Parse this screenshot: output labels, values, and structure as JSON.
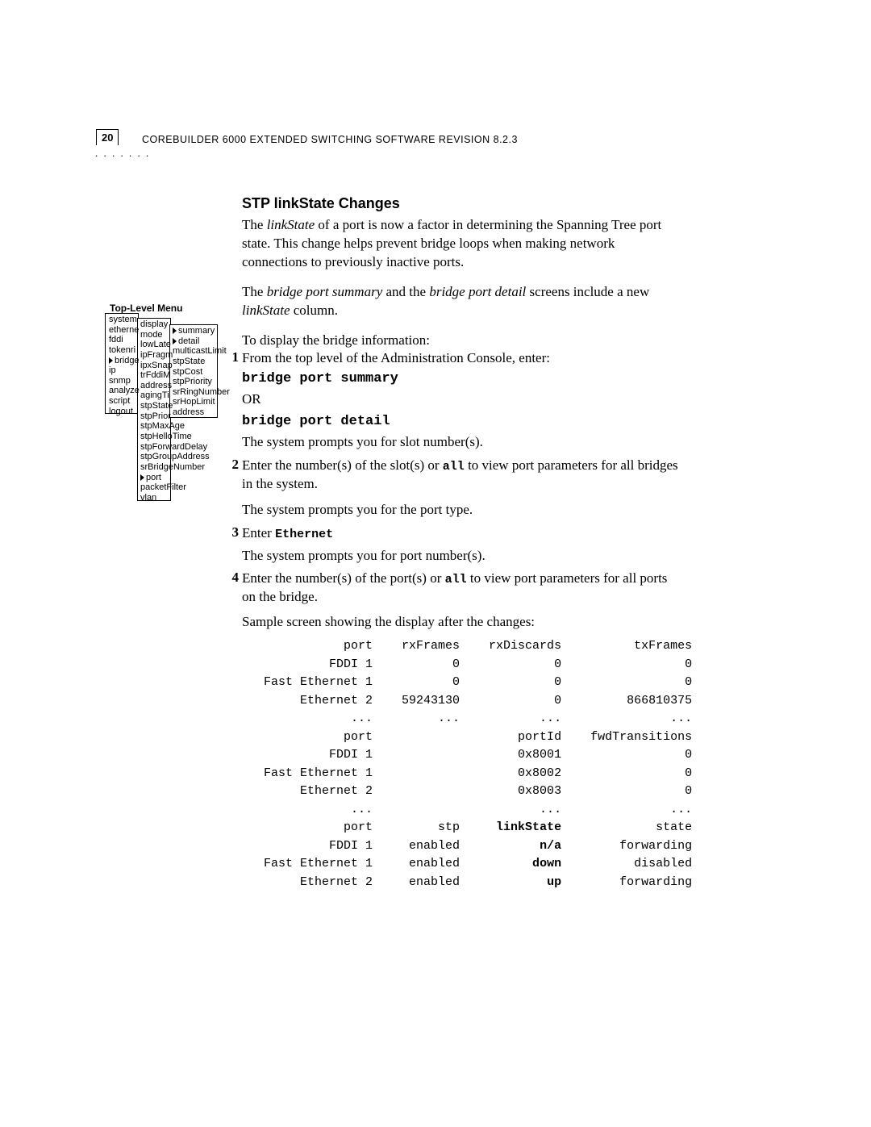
{
  "page_number": "20",
  "header": "COREBUILDER 6000 EXTENDED SWITCHING SOFTWARE REVISION 8.2.3",
  "section_title": "STP linkState Changes",
  "para1a": "The ",
  "para1_ital1": "linkState",
  "para1b": " of a port is now a factor in determining the Spanning Tree port state. This change helps prevent bridge loops when making network connections to previously inactive ports.",
  "para2a": "The ",
  "para2_ital1": "bridge port summary",
  "para2b": " and the ",
  "para2_ital2": "bridge port detail",
  "para2c": " screens include a new ",
  "para2_ital3": "linkState",
  "para2d": " column.",
  "para3": "To display the bridge information:",
  "step1": "From the top level of the Administration Console, enter:",
  "cmd1": "bridge port summary",
  "or": "OR",
  "cmd2": "bridge port detail",
  "prompt_slot": "The system prompts you for slot number(s).",
  "step2a": "Enter the number(s) of the slot(s) or ",
  "step2_all": "all",
  "step2b": " to view port parameters for all bridges in the system.",
  "prompt_type": "The system prompts you for the port type.",
  "step3a": "Enter ",
  "step3_eth": "Ethernet",
  "prompt_port": "The system prompts you for port number(s).",
  "step4a": "Enter the number(s) of the port(s) or ",
  "step4_all": "all",
  "step4b": " to view port parameters for all ports on the bridge.",
  "sample_intro": "Sample screen showing the display after the changes:",
  "menu_title": "Top-Level Menu",
  "col1": [
    "system",
    "etherne",
    "fddi",
    "tokenri",
    "bridge",
    "ip",
    "snmp",
    "analyze",
    "script",
    "logout"
  ],
  "col2": [
    "display",
    "mode",
    "lowLate",
    "ipFragm",
    "ipxSnap",
    "trFddiM",
    "address",
    "agingTi",
    "stpState",
    "stpPrior",
    "stpMaxAge",
    "stpHelloTime",
    "stpForwardDelay",
    "stpGroupAddress",
    "srBridgeNumber",
    "port",
    "packetFilter",
    "vlan"
  ],
  "col3": [
    "summary",
    "detail",
    "multicastLimit",
    "stpState",
    "stpCost",
    "stpPriority",
    "srRingNumber",
    "srHopLimit",
    "address"
  ],
  "table1": {
    "hdr": [
      "port",
      "rxFrames",
      "rxDiscards",
      "txFrames"
    ],
    "rows": [
      [
        "FDDI 1",
        "0",
        "0",
        "0"
      ],
      [
        "Fast Ethernet 1",
        "0",
        "0",
        "0"
      ],
      [
        "Ethernet 2",
        "59243130",
        "0",
        "866810375"
      ],
      [
        "...",
        "...",
        "...",
        "..."
      ]
    ]
  },
  "table2": {
    "hdr": [
      "port",
      "",
      "portId",
      "fwdTransitions"
    ],
    "rows": [
      [
        "FDDI 1",
        "",
        "0x8001",
        "0"
      ],
      [
        "Fast Ethernet 1",
        "",
        "0x8002",
        "0"
      ],
      [
        "Ethernet 2",
        "",
        "0x8003",
        "0"
      ],
      [
        "...",
        "",
        "...",
        "..."
      ]
    ]
  },
  "table3": {
    "hdr": [
      "port",
      "stp",
      "linkState",
      "state"
    ],
    "rows": [
      [
        "FDDI 1",
        "enabled",
        "n/a",
        "forwarding"
      ],
      [
        "Fast Ethernet 1",
        "enabled",
        "down",
        "disabled"
      ],
      [
        "Ethernet 2",
        "enabled",
        "up",
        "forwarding"
      ]
    ]
  }
}
